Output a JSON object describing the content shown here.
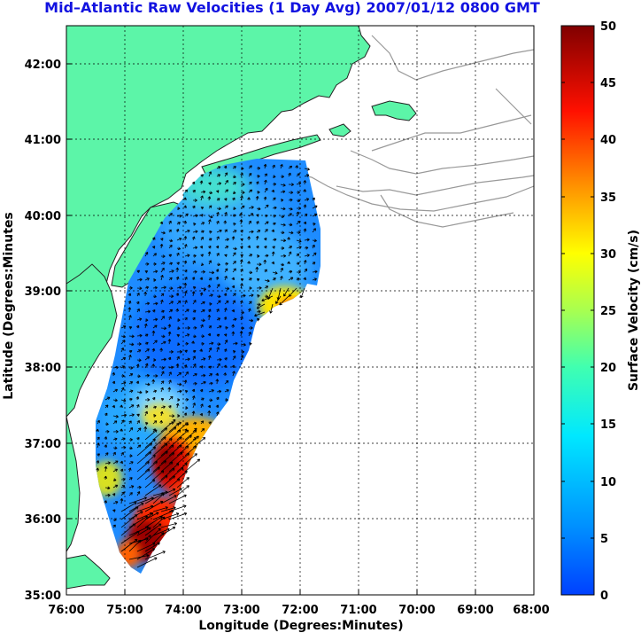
{
  "title": "Mid–Atlantic Raw Velocities (1 Day Avg) 2007/01/12 0800 GMT",
  "map": {
    "xlabel": "Longitude (Degrees:Minutes)",
    "ylabel": "Latitude (Degrees:Minutes",
    "lon_ticks": [
      "76:00",
      "75:00",
      "74:00",
      "73:00",
      "72:00",
      "71:00",
      "70:00",
      "69:00",
      "68:00"
    ],
    "lat_ticks": [
      "42:00",
      "41:00",
      "40:00",
      "39:00",
      "38:00",
      "37:00",
      "36:00",
      "35:00"
    ],
    "lon_range": [
      -76,
      -68
    ],
    "lat_range": [
      35,
      42.5
    ],
    "land_color": "#5cf5a8",
    "grid": true
  },
  "colorbar": {
    "label": "Surface Velocity (cm/s)",
    "ticks": [
      "50",
      "45",
      "40",
      "35",
      "30",
      "25",
      "20",
      "15",
      "10",
      "5",
      "0"
    ],
    "range": [
      0,
      50
    ],
    "colormap": "jet"
  },
  "chart_data": {
    "type": "heatmap",
    "title": "Mid–Atlantic Raw Velocities (1 Day Avg) 2007/01/12 0800 GMT",
    "xlabel": "Longitude (Degrees:Minutes)",
    "ylabel": "Latitude (Degrees:Minutes",
    "value_label": "Surface Velocity (cm/s)",
    "xlim": [
      -76,
      -68
    ],
    "ylim": [
      35,
      42.5
    ],
    "value_range": [
      0,
      50
    ],
    "hotspots": [
      {
        "lon": -74.35,
        "lat": 36.65,
        "value": 48
      },
      {
        "lon": -74.6,
        "lat": 35.6,
        "value": 50
      },
      {
        "lon": -72.5,
        "lat": 38.75,
        "value": 34
      },
      {
        "lon": -75.3,
        "lat": 36.6,
        "value": 22
      }
    ],
    "background_speed": 5
  }
}
